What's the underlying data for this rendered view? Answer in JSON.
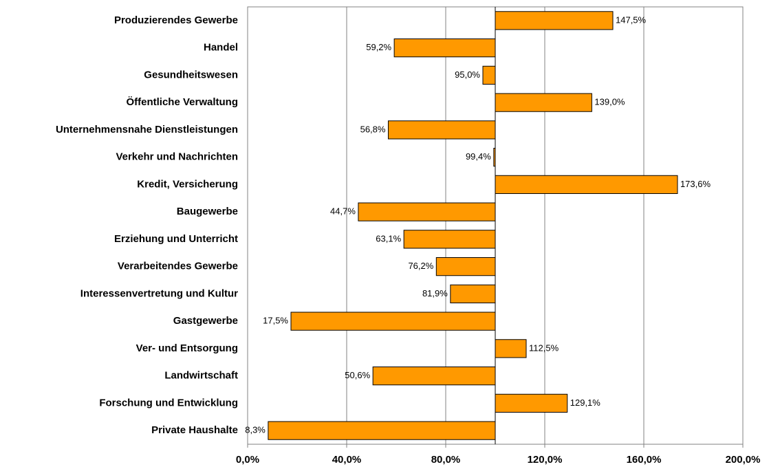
{
  "chart_data": {
    "type": "bar",
    "orientation": "horizontal",
    "baseline": 100,
    "categories": [
      "Produzierendes Gewerbe",
      "Handel",
      "Gesundheitswesen",
      "Öffentliche Verwaltung",
      "Unternehmensnahe Dienstleistungen",
      "Verkehr und Nachrichten",
      "Kredit, Versicherung",
      "Baugewerbe",
      "Erziehung und Unterricht",
      "Verarbeitendes Gewerbe",
      "Interessenvertretung und Kultur",
      "Gastgewerbe",
      "Ver- und Entsorgung",
      "Landwirtschaft",
      "Forschung und Entwicklung",
      "Private Haushalte"
    ],
    "values": [
      147.5,
      59.2,
      95.0,
      139.0,
      56.8,
      99.4,
      173.6,
      44.7,
      63.1,
      76.2,
      81.9,
      17.5,
      112.5,
      50.6,
      129.1,
      8.3
    ],
    "value_labels": [
      "147,5%",
      "59,2%",
      "95,0%",
      "139,0%",
      "56,8%",
      "99,4%",
      "173,6%",
      "44,7%",
      "63,1%",
      "76,2%",
      "81,9%",
      "17,5%",
      "112,5%",
      "50,6%",
      "129,1%",
      "8,3%"
    ],
    "color": "#ff9900",
    "xlim": [
      0,
      200
    ],
    "xticks": [
      {
        "value": 0,
        "label": "0,0%"
      },
      {
        "value": 40,
        "label": "40,0%"
      },
      {
        "value": 80,
        "label": "80,0%"
      },
      {
        "value": 120,
        "label": "120,0%"
      },
      {
        "value": 160,
        "label": "160,0%"
      },
      {
        "value": 200,
        "label": "200,0%"
      }
    ],
    "grid": true
  }
}
